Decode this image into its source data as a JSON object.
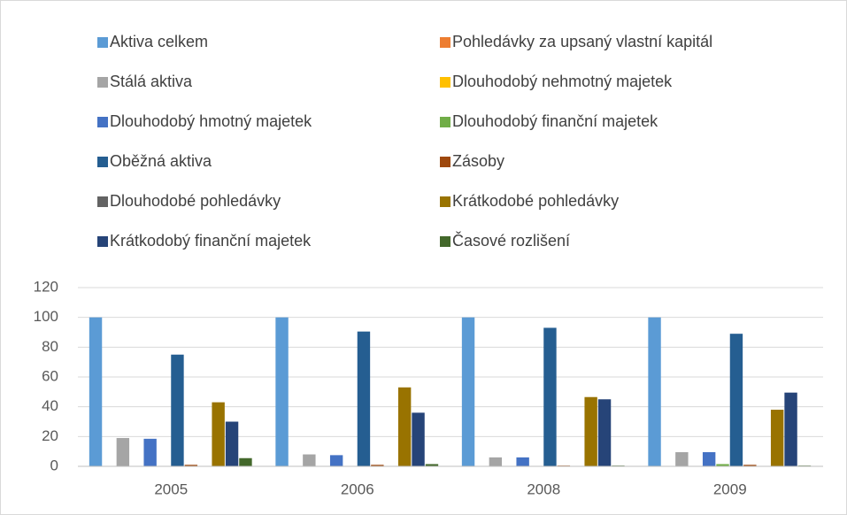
{
  "chart_data": {
    "type": "bar",
    "categories": [
      "2005",
      "2006",
      "2008",
      "2009"
    ],
    "series": [
      {
        "name": "Aktiva celkem",
        "color": "#5b9bd5",
        "values": [
          100,
          100,
          100,
          100
        ]
      },
      {
        "name": "Pohledávky za upsaný vlastní kapitál",
        "color": "#ed7d31",
        "values": [
          0,
          0,
          0,
          0
        ]
      },
      {
        "name": "Stálá aktiva",
        "color": "#a5a5a5",
        "values": [
          19,
          8,
          6,
          9.5
        ]
      },
      {
        "name": "Dlouhodobý nehmotný majetek",
        "color": "#ffc000",
        "values": [
          0,
          0,
          0,
          0
        ]
      },
      {
        "name": "Dlouhodobý hmotný majetek",
        "color": "#4472c4",
        "values": [
          18.5,
          7.5,
          6,
          9.5
        ]
      },
      {
        "name": "Dlouhodobý finanční majetek",
        "color": "#70ad47",
        "values": [
          0,
          0,
          0,
          1.5
        ]
      },
      {
        "name": "Oběžná aktiva",
        "color": "#255e91",
        "values": [
          75,
          90.5,
          93,
          89
        ]
      },
      {
        "name": "Zásoby",
        "color": "#9e480e",
        "values": [
          1,
          1,
          0.5,
          1
        ]
      },
      {
        "name": "Dlouhodobé pohledávky",
        "color": "#636363",
        "values": [
          0,
          0,
          0,
          0
        ]
      },
      {
        "name": "Krátkodobé pohledávky",
        "color": "#997300",
        "values": [
          43,
          53,
          46.5,
          38
        ]
      },
      {
        "name": "Krátkodobý finanční majetek",
        "color": "#264478",
        "values": [
          30,
          36,
          45,
          49.5
        ]
      },
      {
        "name": "Časové rozlišení",
        "color": "#43682b",
        "values": [
          5.5,
          1.5,
          0.5,
          0.5
        ]
      }
    ],
    "ylim": [
      0,
      120
    ],
    "yticks": [
      0,
      20,
      40,
      60,
      80,
      100,
      120
    ],
    "grid": true,
    "legend": "top"
  }
}
